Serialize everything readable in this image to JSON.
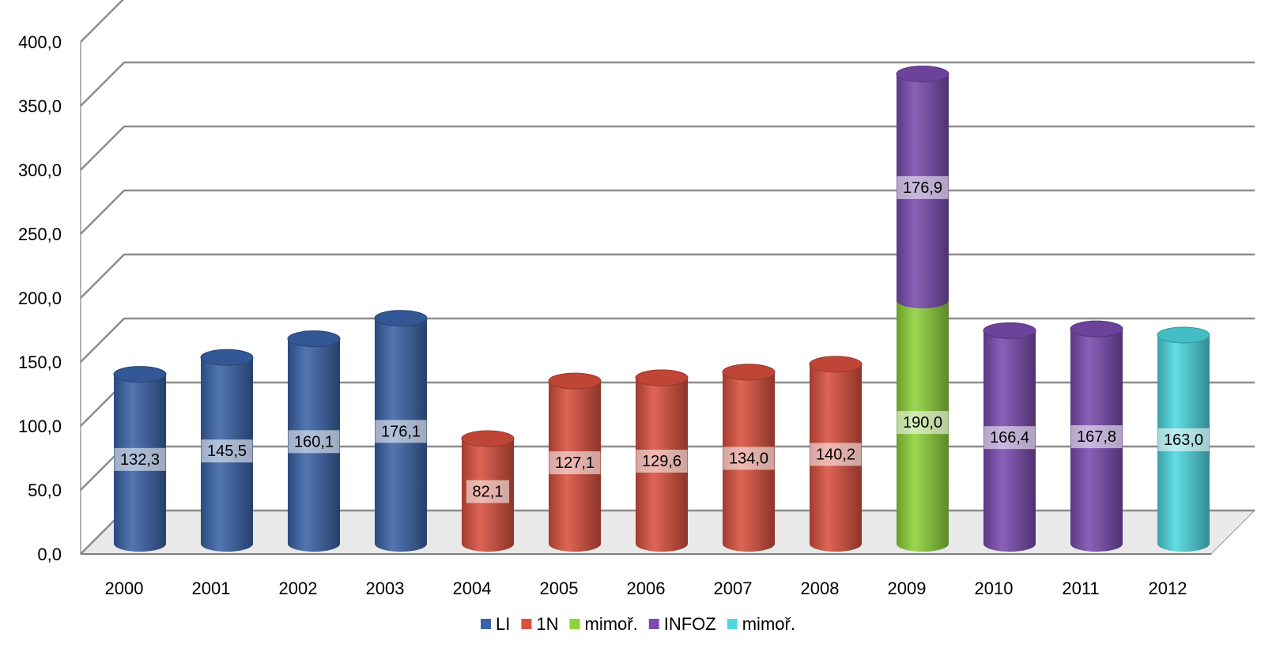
{
  "chart_data": {
    "type": "bar",
    "categories": [
      "2000",
      "2001",
      "2002",
      "2003",
      "2004",
      "2005",
      "2006",
      "2007",
      "2008",
      "2009",
      "2010",
      "2011",
      "2012"
    ],
    "ylim": [
      0,
      400
    ],
    "yticks": [
      0,
      50,
      100,
      150,
      200,
      250,
      300,
      350,
      400
    ],
    "ytick_labels": [
      "0,0",
      "50,0",
      "100,0",
      "150,0",
      "200,0",
      "250,0",
      "300,0",
      "350,0",
      "400,0"
    ],
    "series": [
      {
        "name": "LI",
        "color": "#3A63A8",
        "values": [
          132.3,
          145.5,
          160.1,
          176.1,
          null,
          null,
          null,
          null,
          null,
          null,
          null,
          null,
          null
        ],
        "labels": [
          "132,3",
          "145,5",
          "160,1",
          "176,1",
          "",
          "",
          "",
          "",
          "",
          "",
          "",
          "",
          ""
        ]
      },
      {
        "name": "1N",
        "color": "#D9503E",
        "values": [
          null,
          null,
          null,
          null,
          82.1,
          127.1,
          129.6,
          134.0,
          140.2,
          null,
          null,
          null,
          null
        ],
        "labels": [
          "",
          "",
          "",
          "",
          "82,1",
          "127,1",
          "129,6",
          "134,0",
          "140,2",
          "",
          "",
          "",
          ""
        ]
      },
      {
        "name": "mimoř.",
        "color": "#8DD23A",
        "values": [
          null,
          null,
          null,
          null,
          null,
          null,
          null,
          null,
          null,
          190.0,
          null,
          null,
          null
        ],
        "labels": [
          "",
          "",
          "",
          "",
          "",
          "",
          "",
          "",
          "",
          "190,0",
          "",
          "",
          ""
        ]
      },
      {
        "name": "INFOZ",
        "color": "#7A4CB0",
        "values": [
          null,
          null,
          null,
          null,
          null,
          null,
          null,
          null,
          null,
          176.9,
          166.4,
          167.8,
          null
        ],
        "labels": [
          "",
          "",
          "",
          "",
          "",
          "",
          "",
          "",
          "",
          "176,9",
          "166,4",
          "167,8",
          ""
        ]
      },
      {
        "name": "mimoř.",
        "color": "#4DD8E0",
        "values": [
          null,
          null,
          null,
          null,
          null,
          null,
          null,
          null,
          null,
          null,
          null,
          null,
          163.0
        ],
        "labels": [
          "",
          "",
          "",
          "",
          "",
          "",
          "",
          "",
          "",
          "",
          "",
          "",
          "163,0"
        ]
      }
    ],
    "stacked": true,
    "grid": true,
    "legend_position": "bottom"
  }
}
